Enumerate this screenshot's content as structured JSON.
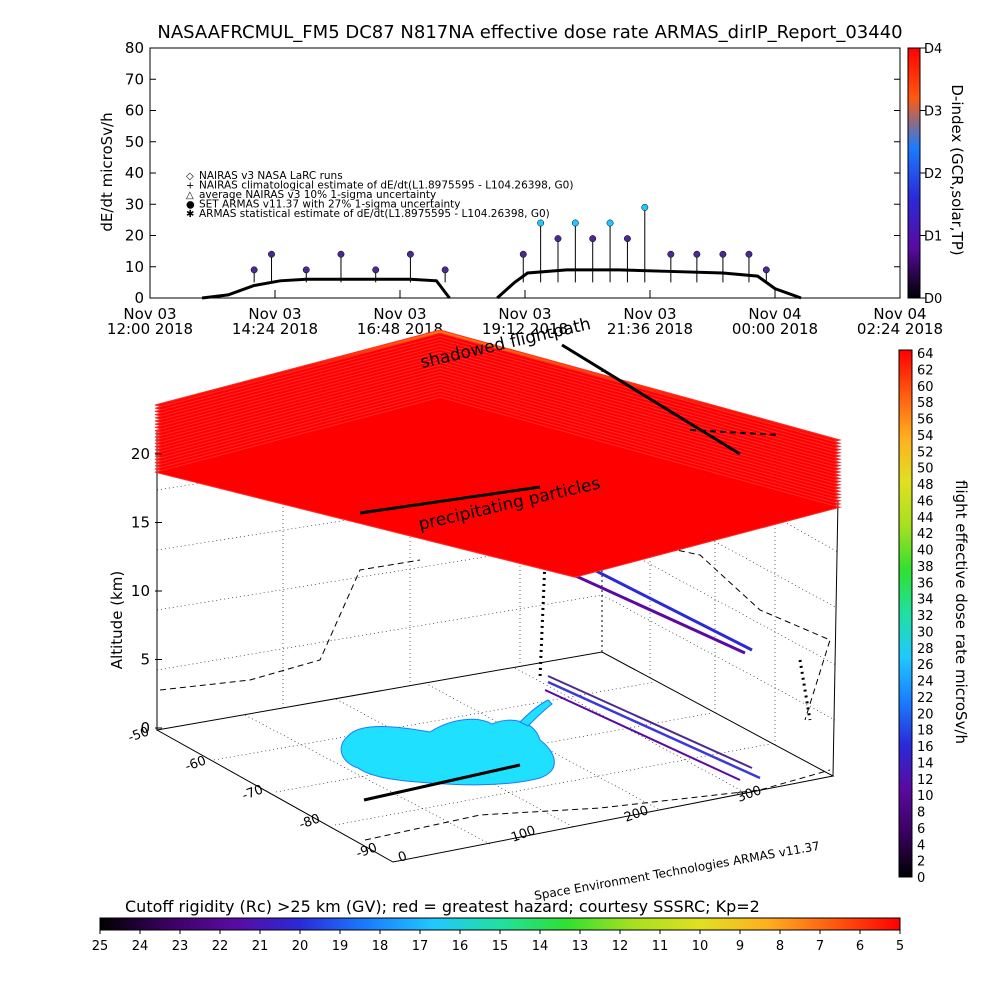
{
  "top_title": "NASAAFRCMUL_FM5 DC87 N817NA effective dose rate ARMAS_dirIP_Report_03440",
  "colors": {
    "doseRateColorbar": [
      "#000000",
      "#3a0060",
      "#5a0aa0",
      "#2a2ad8",
      "#1a7cff",
      "#20c8ff",
      "#20e0a0",
      "#30e030",
      "#a8e020",
      "#e0e020",
      "#ffb020",
      "#ff5a10",
      "#ff0000"
    ],
    "cutoffColorbar": [
      "#000000",
      "#3a0060",
      "#5a0aa0",
      "#2a2ad8",
      "#1a7cff",
      "#20c8ff",
      "#20e0a0",
      "#30e030",
      "#a8e020",
      "#e0e020",
      "#ffb020",
      "#ff5a10",
      "#ff0000"
    ],
    "dindexColorbar": [
      "#000000",
      "#5a0aa0",
      "#2a2ad8",
      "#1a7cff",
      "#ff5a10",
      "#ff0000"
    ],
    "shadowedRegion": "#ff0000",
    "antarcticRegion": "#20e0ff",
    "armasMarker": "#4b2a90",
    "armasMarkerLight": "#20c8ff"
  },
  "chart_data": [
    {
      "type": "scatter",
      "title": "NASAAFRCMUL_FM5 DC87 N817NA effective dose rate ARMAS_dirIP_Report_03440",
      "ylabel": "dE/dt microSv/h",
      "ylim": [
        0,
        80
      ],
      "yticks": [
        "0",
        "10",
        "20",
        "30",
        "40",
        "50",
        "60",
        "70",
        "80"
      ],
      "xtick_labels": [
        {
          "date": "Nov 03",
          "time": "12:00 2018"
        },
        {
          "date": "Nov 03",
          "time": "14:24 2018"
        },
        {
          "date": "Nov 03",
          "time": "16:48 2018"
        },
        {
          "date": "Nov 03",
          "time": "19:12 2018"
        },
        {
          "date": "Nov 03",
          "time": "21:36 2018"
        },
        {
          "date": "Nov 04",
          "time": "00:00 2018"
        },
        {
          "date": "Nov 04",
          "time": "02:24 2018"
        }
      ],
      "legend": [
        {
          "symbol": "◇",
          "label": "NAIRAS v3 NASA LaRC runs"
        },
        {
          "symbol": "+",
          "label": "NAIRAS climatological estimate of dE/dt(L1.8975595 - L104.26398, G0)"
        },
        {
          "symbol": "△",
          "label": "average NAIRAS v3 10% 1-sigma uncertainty"
        },
        {
          "symbol": "●",
          "label": "SET ARMAS v11.37 with 27% 1-sigma uncertainty"
        },
        {
          "symbol": "✱",
          "label": "ARMAS statistical estimate of dE/dt(L1.8975595 - L104.26398, G0)"
        }
      ],
      "right_axis": {
        "label": "D-index (GCR,solar,TP)",
        "ticks": [
          "D0",
          "D1",
          "D2",
          "D3",
          "D4"
        ]
      },
      "series": [
        {
          "name": "NAIRAS climatological estimate of dE/dt(L1.8975595 - L104.26398, G0)",
          "x": [
            "2018-11-03 13:00",
            "2018-11-03 13:30",
            "2018-11-03 14:00",
            "2018-11-03 14:30",
            "2018-11-03 15:00",
            "2018-11-03 16:00",
            "2018-11-03 17:00",
            "2018-11-03 17:30",
            "2018-11-03 17:45"
          ],
          "values": [
            0,
            1,
            4,
            5.5,
            6,
            6,
            6,
            5.5,
            0
          ]
        },
        {
          "name": "NAIRAS climatological estimate of dE/dt(L1.8975595 - L104.26398, G0)",
          "x": [
            "2018-11-03 18:40",
            "2018-11-03 19:00",
            "2018-11-03 19:15",
            "2018-11-03 20:00",
            "2018-11-03 21:00",
            "2018-11-03 22:00",
            "2018-11-03 23:00",
            "2018-11-03 23:40",
            "2018-11-04 00:00",
            "2018-11-04 00:30"
          ],
          "values": [
            0,
            5,
            8,
            9,
            9,
            8.5,
            8,
            7,
            3,
            0
          ]
        },
        {
          "name": "SET ARMAS v11.37 with 27% 1-sigma uncertainty",
          "x": [
            "2018-11-03 14:00",
            "2018-11-03 14:20",
            "2018-11-03 15:00",
            "2018-11-03 15:40",
            "2018-11-03 16:20",
            "2018-11-03 17:00",
            "2018-11-03 17:40",
            "2018-11-03 19:10",
            "2018-11-03 19:30",
            "2018-11-03 19:50",
            "2018-11-03 20:10",
            "2018-11-03 20:30",
            "2018-11-03 20:50",
            "2018-11-03 21:10",
            "2018-11-03 21:30",
            "2018-11-03 22:00",
            "2018-11-03 22:30",
            "2018-11-03 23:00",
            "2018-11-03 23:30",
            "2018-11-03 23:50"
          ],
          "values": [
            9,
            14,
            9,
            14,
            9,
            14,
            9,
            14,
            24,
            19,
            24,
            19,
            24,
            19,
            29,
            14,
            14,
            14,
            14,
            9
          ]
        }
      ]
    },
    {
      "type": "scatter",
      "subtype": "3d-flight-path",
      "zlabel": "Altitude (km)",
      "zticks": [
        "0",
        "5",
        "10",
        "15",
        "20"
      ],
      "lat_ticks": [
        "-50",
        "-60",
        "-70",
        "-80",
        "-90"
      ],
      "lon_ticks": [
        "0",
        "100",
        "200",
        "300"
      ],
      "annotations": [
        "shadowed flightpath",
        "precipitating particles"
      ],
      "credit": "Space Environment Technologies ARMAS v11.37",
      "colorbar": {
        "label": "flight effective dose rate microSv/h",
        "min": 0,
        "max": 64,
        "ticks": [
          "0",
          "2",
          "4",
          "6",
          "8",
          "10",
          "12",
          "14",
          "16",
          "18",
          "20",
          "22",
          "24",
          "26",
          "28",
          "30",
          "32",
          "34",
          "36",
          "38",
          "40",
          "42",
          "44",
          "46",
          "48",
          "50",
          "52",
          "54",
          "56",
          "58",
          "60",
          "62",
          "64"
        ]
      }
    },
    {
      "type": "heatmap",
      "subtype": "colorbar",
      "title": "Cutoff rigidity (Rc) >25 km (GV); red = greatest hazard; courtesy SSSRC; Kp=2",
      "ticks": [
        "25",
        "24",
        "23",
        "22",
        "21",
        "20",
        "19",
        "18",
        "17",
        "16",
        "15",
        "14",
        "13",
        "12",
        "11",
        "10",
        "9",
        "8",
        "7",
        "6",
        "5"
      ]
    }
  ]
}
